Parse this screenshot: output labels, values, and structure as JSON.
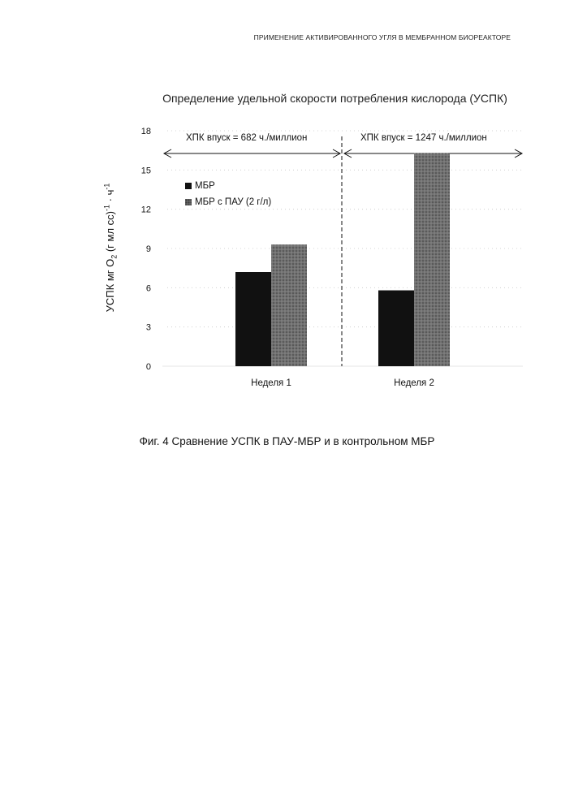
{
  "page_header": "ПРИМЕНЕНИЕ АКТИВИРОВАННОГО УГЛЯ В МЕМБРАННОМ БИОРЕАКТОРЕ",
  "figure_caption": "Фиг. 4  Сравнение УСПК в ПАУ-МБР и в контрольном МБР",
  "chart_data": {
    "type": "bar",
    "title": "Определение удельной скорости потребления кислорода (УСПК)",
    "ylabel_main": "УСПК мг O",
    "ylabel_sub": "2",
    "ylabel_rest": " (г мл сс)",
    "ylabel_sup1": "-1",
    "ylabel_dot": " · ч",
    "ylabel_sup2": "-1",
    "xlabel": "",
    "categories": [
      "Неделя 1",
      "Неделя 2"
    ],
    "series": [
      {
        "name": "МБР",
        "values": [
          7.2,
          5.8
        ],
        "color": "#111111"
      },
      {
        "name": "МБР с ПАУ (2 г/л)",
        "values": [
          9.3,
          16.3
        ],
        "color": "#6a6a6a"
      }
    ],
    "ylim": [
      0,
      18
    ],
    "yticks": [
      "0",
      "3",
      "6",
      "9",
      "12",
      "15",
      "18"
    ],
    "grid": true,
    "legend_position": "top-left",
    "annotations": [
      "ХПК впуск = 682 ч./миллион",
      "ХПК впуск = 1247 ч./миллион"
    ]
  }
}
